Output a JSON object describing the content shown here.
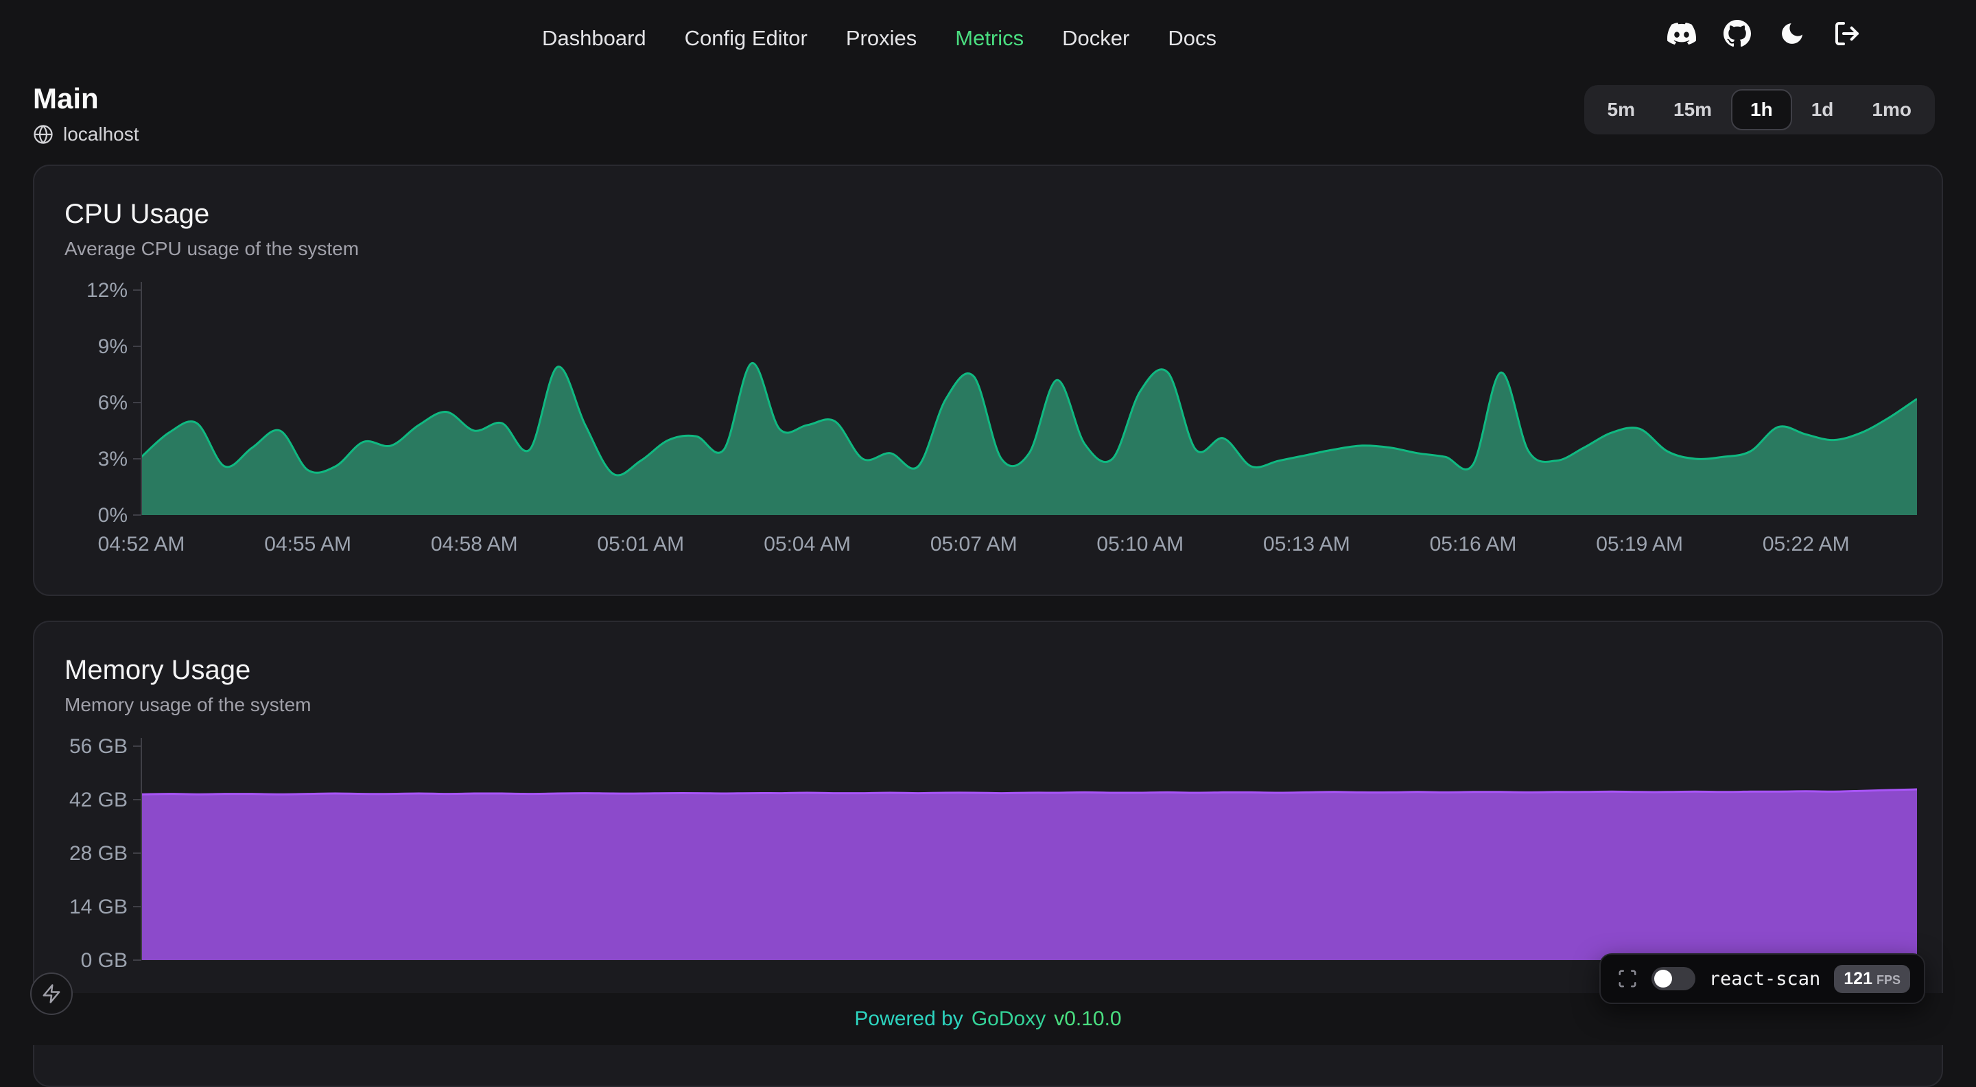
{
  "nav": {
    "items": [
      "Dashboard",
      "Config Editor",
      "Proxies",
      "Metrics",
      "Docker",
      "Docs"
    ],
    "active": "Metrics"
  },
  "topbar_icons": [
    "discord-icon",
    "github-icon",
    "theme-moon-icon",
    "logout-icon"
  ],
  "header": {
    "title": "Main",
    "host": "localhost"
  },
  "time_range": {
    "options": [
      "5m",
      "15m",
      "1h",
      "1d",
      "1mo"
    ],
    "active": "1h"
  },
  "chart_data": [
    {
      "type": "area",
      "title": "CPU Usage",
      "subtitle": "Average CPU usage of the system",
      "ylabel": "",
      "xlabel": "",
      "ylim": [
        0,
        12
      ],
      "yticks": [
        0,
        3,
        6,
        9,
        12
      ],
      "ytick_suffix": "%",
      "x_labels": [
        "04:52 AM",
        "04:55 AM",
        "04:58 AM",
        "05:01 AM",
        "05:04 AM",
        "05:07 AM",
        "05:10 AM",
        "05:13 AM",
        "05:16 AM",
        "05:19 AM",
        "05:22 AM"
      ],
      "x_tick_step": 6,
      "grid": false,
      "legend": false,
      "color": "#10b981",
      "fill": "#2a7a60",
      "values": [
        3.1,
        4.4,
        4.9,
        2.6,
        3.6,
        4.5,
        2.4,
        2.6,
        3.9,
        3.7,
        4.8,
        5.5,
        4.5,
        4.9,
        3.5,
        7.9,
        4.8,
        2.2,
        2.9,
        4.0,
        4.2,
        3.5,
        8.1,
        4.6,
        4.8,
        5.0,
        3.0,
        3.3,
        2.6,
        6.2,
        7.4,
        3.0,
        3.3,
        7.2,
        3.8,
        3.0,
        6.6,
        7.6,
        3.5,
        4.1,
        2.6,
        2.9,
        3.2,
        3.5,
        3.7,
        3.6,
        3.3,
        3.1,
        2.7,
        7.6,
        3.4,
        2.9,
        3.6,
        4.4,
        4.6,
        3.4,
        3.0,
        3.1,
        3.4,
        4.7,
        4.3,
        4.0,
        4.4,
        5.2,
        6.2
      ]
    },
    {
      "type": "area",
      "title": "Memory Usage",
      "subtitle": "Memory usage of the system",
      "ylabel": "",
      "xlabel": "",
      "ylim": [
        0,
        56
      ],
      "yticks": [
        0,
        14,
        28,
        42,
        56
      ],
      "ytick_suffix": " GB",
      "x_labels": [],
      "x_tick_step": 6,
      "grid": false,
      "legend": false,
      "color": "#a855f7",
      "fill": "#8c4acb",
      "values": [
        43.4,
        43.5,
        43.4,
        43.5,
        43.5,
        43.4,
        43.5,
        43.6,
        43.5,
        43.5,
        43.6,
        43.5,
        43.6,
        43.6,
        43.5,
        43.6,
        43.7,
        43.6,
        43.6,
        43.7,
        43.7,
        43.6,
        43.7,
        43.7,
        43.8,
        43.7,
        43.7,
        43.8,
        43.7,
        43.8,
        43.8,
        43.7,
        43.8,
        43.8,
        43.9,
        43.8,
        43.8,
        43.9,
        43.8,
        43.9,
        43.9,
        43.8,
        43.9,
        44.0,
        43.9,
        43.9,
        44.0,
        43.9,
        44.0,
        44.0,
        43.9,
        44.0,
        44.0,
        44.1,
        44.0,
        44.0,
        44.1,
        44.0,
        44.1,
        44.1,
        44.2,
        44.1,
        44.3,
        44.5,
        44.7
      ]
    }
  ],
  "footer": {
    "powered_by": "Powered by",
    "brand": "GoDoxy",
    "version": "v0.10.0"
  },
  "react_scan": {
    "label": "react-scan",
    "fps": "121",
    "fps_unit": "FPS"
  },
  "colors": {
    "accent_green": "#4ade80",
    "cpu_fill": "#2a7a60",
    "memory_fill": "#8c4acb",
    "axis_label": "#9ca3af"
  }
}
